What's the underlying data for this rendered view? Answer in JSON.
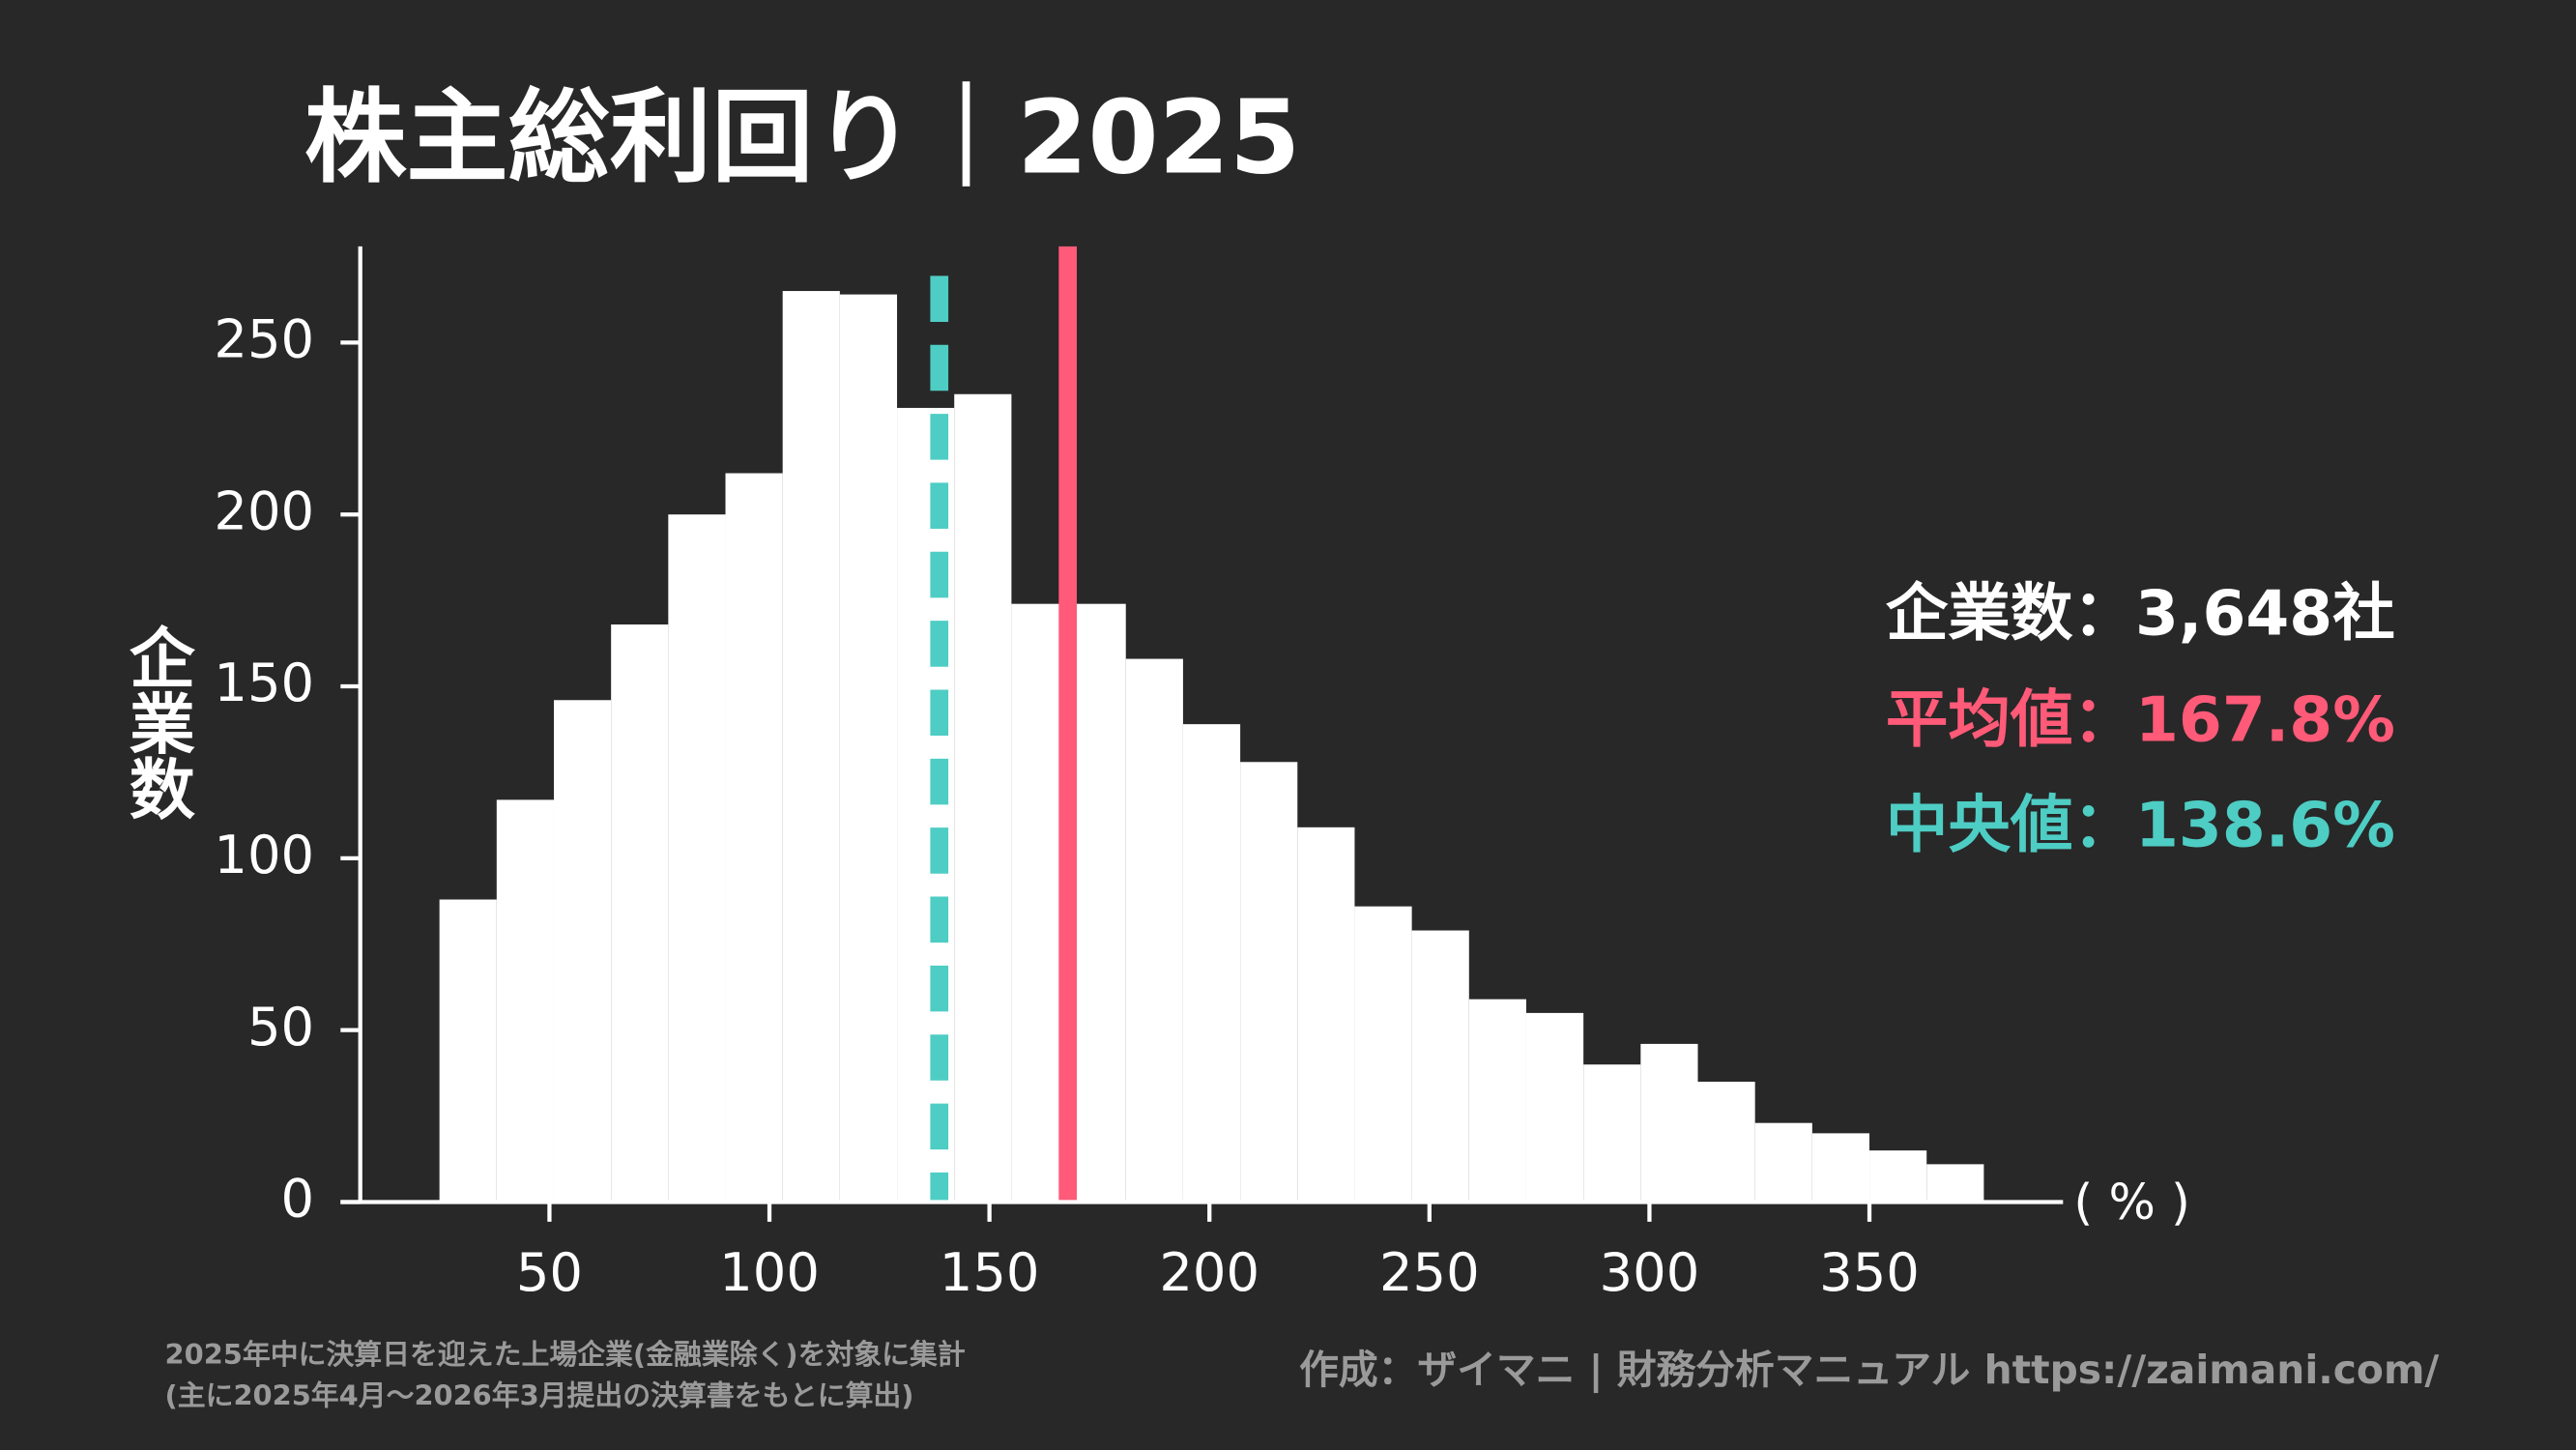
{
  "chart_data": {
    "type": "histogram",
    "title": "株主総利回り｜2025",
    "ylabel": "企業数",
    "xlabel": "( % )",
    "bins": [
      25,
      38,
      51,
      64,
      77,
      90,
      103,
      116,
      129,
      142,
      155,
      168,
      181,
      194,
      207,
      220,
      233,
      246,
      259,
      272,
      285,
      298,
      311,
      324,
      337,
      350,
      363,
      376
    ],
    "values": [
      88,
      117,
      146,
      168,
      200,
      212,
      265,
      264,
      231,
      235,
      174,
      174,
      158,
      139,
      128,
      109,
      86,
      79,
      59,
      55,
      40,
      46,
      35,
      23,
      20,
      15,
      11
    ],
    "color": "#ffffff",
    "xlim": [
      7,
      394
    ],
    "ylim": [
      0,
      278
    ],
    "xticks": [
      50,
      100,
      150,
      200,
      250,
      300,
      350
    ],
    "yticks": [
      0,
      50,
      100,
      150,
      200,
      250
    ],
    "count_label": "企業数：3,648社",
    "mean": {
      "value": 167.8,
      "label": "平均値：167.8%",
      "color": "#ff5a78"
    },
    "median": {
      "value": 138.6,
      "label": "中央値：138.6%",
      "color": "#4ecdc4"
    },
    "notes": [
      "2025年中に決算日を迎えた上場企業(金融業除く)を対象に集計",
      "(主に2025年4月〜2026年3月提出の決算書をもとに算出)"
    ],
    "credit": "作成：ザイマニ | 財務分析マニュアル https://zaimani.com/"
  }
}
